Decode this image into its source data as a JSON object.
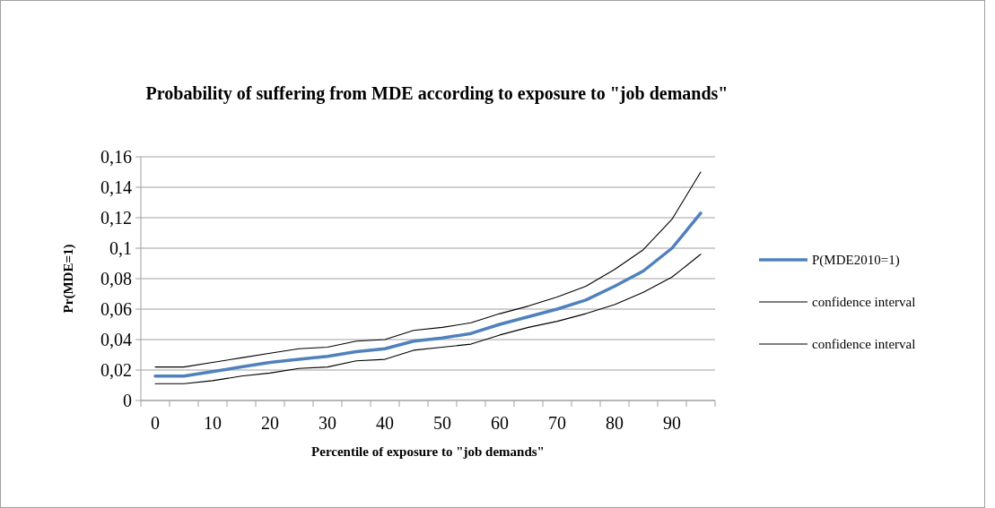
{
  "chart_data": {
    "type": "line",
    "title": "Probability of suffering from MDE according to exposure to \"job demands\"",
    "xlabel": "Percentile of exposure to \"job demands\"",
    "ylabel": "Pr(MDE=1)",
    "categories": [
      "0",
      null,
      "10",
      null,
      "20",
      null,
      "30",
      null,
      "40",
      null,
      "50",
      null,
      "60",
      null,
      "70",
      null,
      "80",
      null,
      "90",
      null
    ],
    "series": [
      {
        "name": "P(MDE2010=1)",
        "color": "#4f81bd",
        "values": [
          0.016,
          0.016,
          0.019,
          0.022,
          0.025,
          0.027,
          0.029,
          0.032,
          0.034,
          0.039,
          0.041,
          0.044,
          0.05,
          0.055,
          0.06,
          0.066,
          0.075,
          0.085,
          0.1,
          0.123
        ]
      },
      {
        "name": "confidence interval",
        "color": "#000000",
        "values": [
          0.011,
          0.011,
          0.013,
          0.016,
          0.018,
          0.021,
          0.022,
          0.026,
          0.027,
          0.033,
          0.035,
          0.037,
          0.043,
          0.048,
          0.052,
          0.057,
          0.063,
          0.071,
          0.081,
          0.096
        ]
      },
      {
        "name": "confidence interval",
        "color": "#000000",
        "values": [
          0.022,
          0.022,
          0.025,
          0.028,
          0.031,
          0.034,
          0.035,
          0.039,
          0.04,
          0.046,
          0.048,
          0.051,
          0.057,
          0.062,
          0.068,
          0.075,
          0.086,
          0.099,
          0.119,
          0.15
        ]
      }
    ],
    "ylim": [
      0,
      0.16
    ],
    "yticks": [
      0,
      {
        "value": 0.02,
        "label": "0,02"
      },
      {
        "value": 0.04,
        "label": "0,04"
      },
      {
        "value": 0.06,
        "label": "0,06"
      },
      {
        "value": 0.08,
        "label": "0,08"
      },
      {
        "value": 0.1,
        "label": "0,1"
      },
      {
        "value": 0.12,
        "label": "0,12"
      },
      {
        "value": 0.14,
        "label": "0,14"
      },
      {
        "value": 0.16,
        "label": "0,16"
      }
    ],
    "grid": "y",
    "legend": "right",
    "marker": "none",
    "line_style": "solid"
  }
}
